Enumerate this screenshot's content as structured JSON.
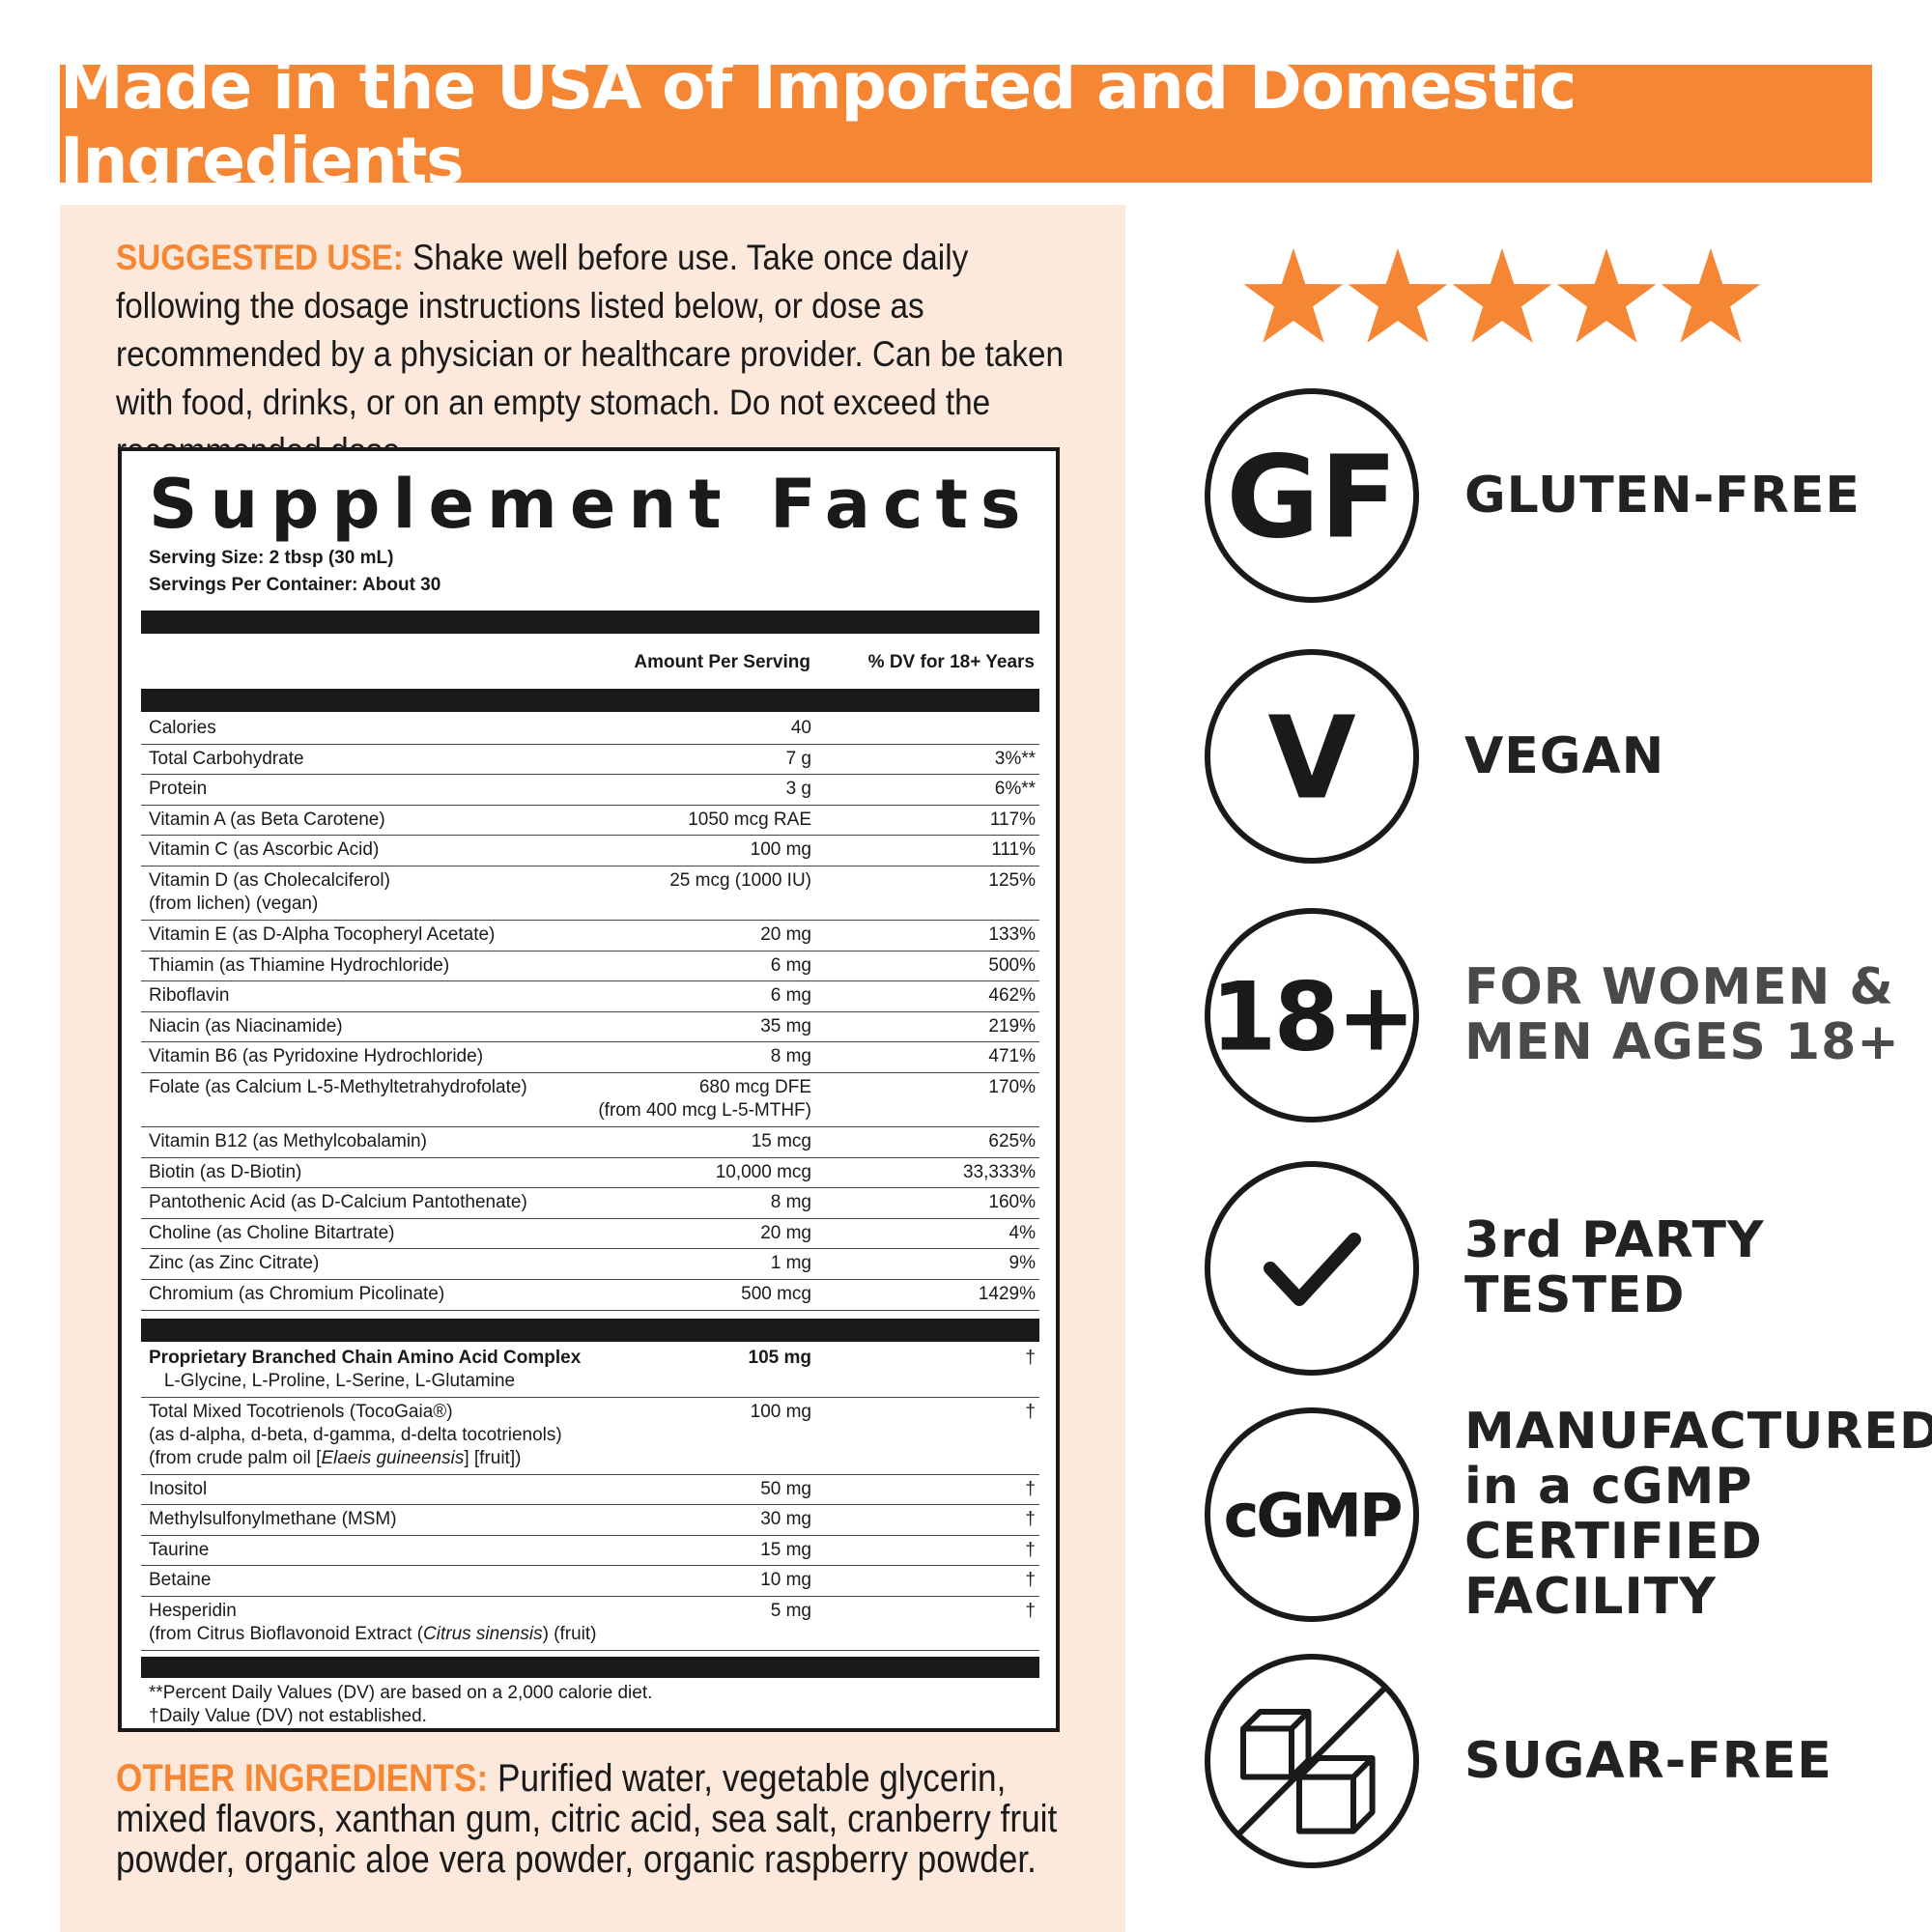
{
  "banner": "Made in the USA of Imported and Domestic Ingredients",
  "suggested_use": {
    "label": "SUGGESTED USE:",
    "text": " Shake well before use. Take once daily following the dosage instructions listed below, or dose as recommended by a physician or healthcare provider. Can be taken with food, drinks, or on an empty stomach. Do   not exceed the recommended dose."
  },
  "facts": {
    "title": "Supplement Facts",
    "serving_size": "Serving Size: 2 tbsp (30 mL)",
    "servings_per_container": "Servings Per Container: About 30",
    "col_amount": "Amount Per Serving",
    "col_dv": "% DV for 18+ Years",
    "rows": [
      {
        "name": "Calories",
        "amount": "40",
        "dv": ""
      },
      {
        "name": "Total Carbohydrate",
        "amount": "7 g",
        "dv": "3%**"
      },
      {
        "name": "Protein",
        "amount": "3 g",
        "dv": "6%**"
      },
      {
        "name": "Vitamin A (as Beta Carotene)",
        "amount": "1050 mcg RAE",
        "dv": "117%"
      },
      {
        "name": "Vitamin C (as Ascorbic Acid)",
        "amount": "100 mg",
        "dv": "111%"
      },
      {
        "name": "Vitamin D (as Cholecalciferol)",
        "sub": "(from lichen) (vegan)",
        "amount": "25 mcg (1000 IU)",
        "dv": "125%"
      },
      {
        "name": "Vitamin E (as D-Alpha Tocopheryl Acetate)",
        "amount": "20 mg",
        "dv": "133%"
      },
      {
        "name": "Thiamin (as Thiamine Hydrochloride)",
        "amount": "6 mg",
        "dv": "500%"
      },
      {
        "name": "Riboflavin",
        "amount": "6 mg",
        "dv": "462%"
      },
      {
        "name": "Niacin (as Niacinamide)",
        "amount": "35 mg",
        "dv": "219%"
      },
      {
        "name": "Vitamin B6 (as Pyridoxine Hydrochloride)",
        "amount": "8 mg",
        "dv": "471%"
      },
      {
        "name": "Folate (as Calcium L-5-Methyltetrahydrofolate)",
        "amount": "680 mcg DFE",
        "amount_sub": "(from 400 mcg L-5-MTHF)",
        "dv": "170%"
      },
      {
        "name": "Vitamin B12 (as Methylcobalamin)",
        "amount": "15 mcg",
        "dv": "625%"
      },
      {
        "name": "Biotin (as D-Biotin)",
        "amount": "10,000 mcg",
        "dv": "33,333%"
      },
      {
        "name": "Pantothenic Acid (as D-Calcium Pantothenate)",
        "amount": "8 mg",
        "dv": "160%"
      },
      {
        "name": "Choline (as Choline Bitartrate)",
        "amount": "20 mg",
        "dv": "4%"
      },
      {
        "name": "Zinc (as Zinc Citrate)",
        "amount": "1 mg",
        "dv": "9%"
      },
      {
        "name": "Chromium (as Chromium Picolinate)",
        "amount": "500 mcg",
        "dv": "1429%"
      }
    ],
    "rows2": [
      {
        "name": "Proprietary Branched Chain Amino Acid Complex",
        "sub": "   L-Glycine, L-Proline, L-Serine, L-Glutamine",
        "amount": "105 mg",
        "dv": "†",
        "bold": true
      },
      {
        "name": "Total Mixed Tocotrienols (TocoGaia®)",
        "sub": "(as d-alpha, d-beta, d-gamma, d-delta tocotrienols)",
        "sub2": "(from crude palm oil [Elaeis guineensis] [fruit])",
        "amount": "100 mg",
        "dv": "†"
      },
      {
        "name": "Inositol",
        "amount": "50 mg",
        "dv": "†"
      },
      {
        "name": "Methylsulfonylmethane (MSM)",
        "amount": "30 mg",
        "dv": "†"
      },
      {
        "name": "Taurine",
        "amount": "15 mg",
        "dv": "†"
      },
      {
        "name": "Betaine",
        "amount": "10 mg",
        "dv": "†"
      },
      {
        "name": "Hesperidin",
        "sub": "(from Citrus Bioflavonoid Extract (Citrus sinensis) (fruit)",
        "amount": "5 mg",
        "dv": "†"
      }
    ],
    "footnote1": "**Percent Daily Values (DV) are based on a 2,000 calorie diet.",
    "footnote2": "†Daily Value (DV) not established."
  },
  "other_ingredients": {
    "label": "OTHER INGREDIENTS:",
    "text": " Purified water, vegetable glycerin, mixed flavors, xanthan gum, citric acid, sea salt, cranberry fruit powder, organic aloe vera powder, organic raspberry powder."
  },
  "rating": {
    "stars": 5,
    "color": "#f58634"
  },
  "badges": [
    {
      "icon": "GF",
      "label_lines": [
        "GLUTEN-FREE"
      ]
    },
    {
      "icon": "V",
      "label_lines": [
        "VEGAN"
      ]
    },
    {
      "icon": "18+",
      "label_lines": [
        "FOR WOMEN &",
        "MEN AGES 18+"
      ]
    },
    {
      "icon": "checkmark-icon",
      "label_lines": [
        "3rd PARTY",
        "TESTED"
      ]
    },
    {
      "icon": "cGMP",
      "label_lines": [
        "MANUFACTURED",
        "in a cGMP",
        "CERTIFIED",
        "FACILITY"
      ]
    },
    {
      "icon": "no-sugar-icon",
      "label_lines": [
        "SUGAR-FREE"
      ]
    }
  ]
}
